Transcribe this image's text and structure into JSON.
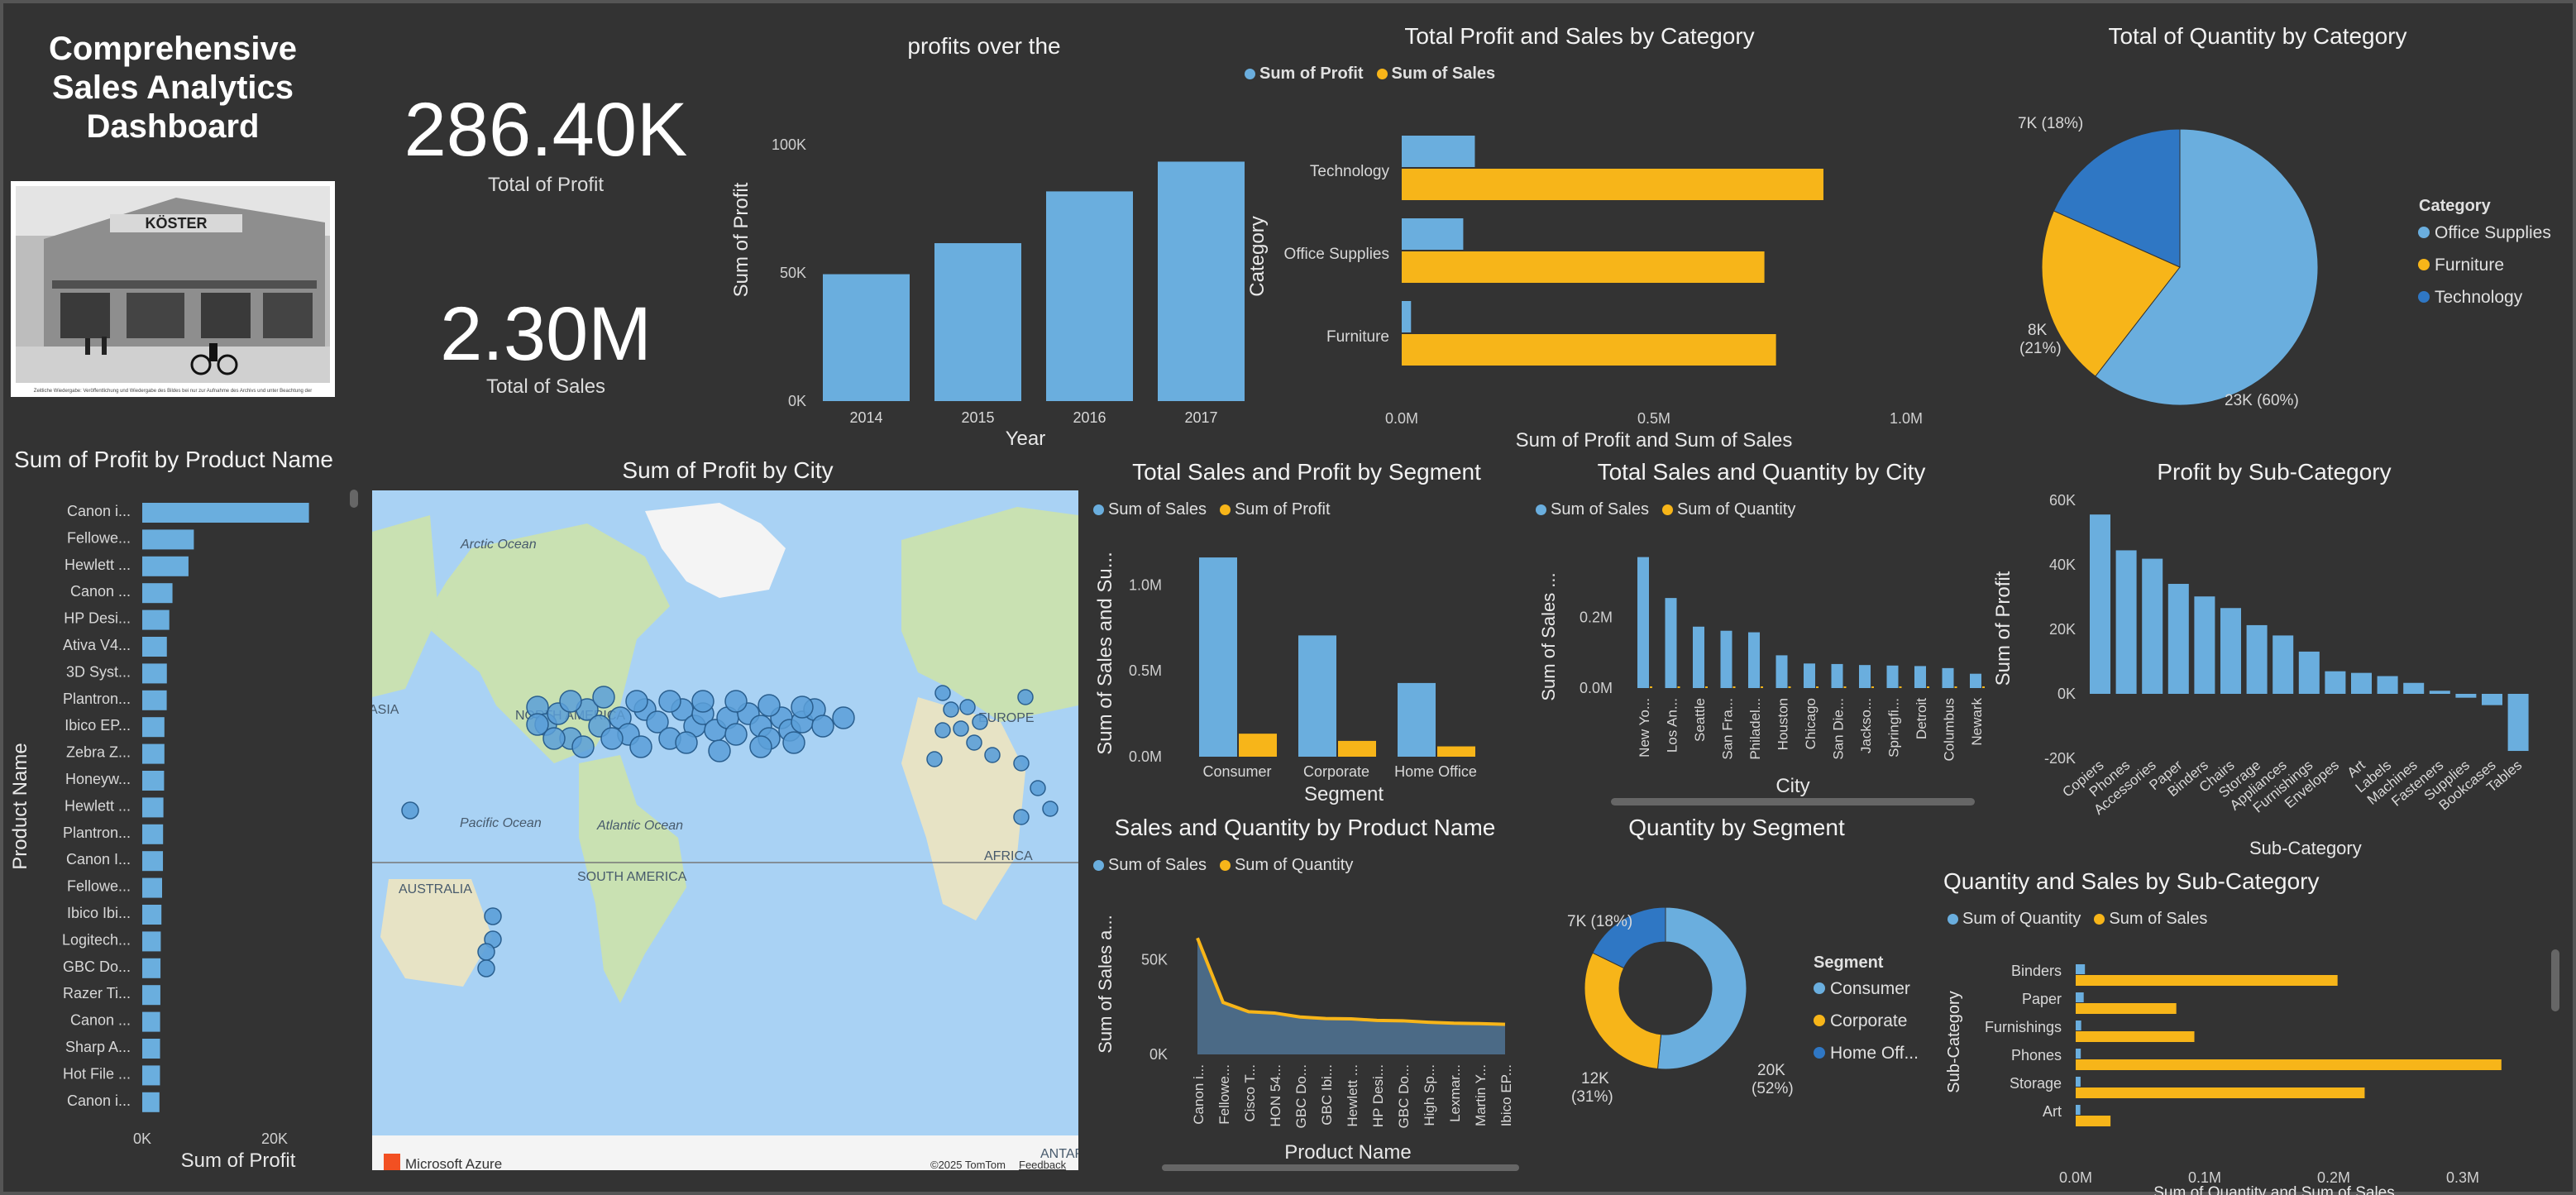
{
  "dashboard": {
    "title": "Comprehensive Sales Analytics Dashboard",
    "logo_lines": [
      "Comprehensive",
      "Sales Analytics",
      "Dashboard"
    ],
    "photo_caption": "Zeitliche Wiedergabe: Veröffentlichung und Wiedergabe des Bildes bei nur zur Aufnahme des Archivs und unter Beachtung der",
    "photo_sign": "KÖSTER"
  },
  "kpis": {
    "profit_value": "286.40K",
    "profit_label": "Total of Profit",
    "sales_value": "2.30M",
    "sales_label": "Total  of Sales"
  },
  "colors": {
    "blue": "#6aaede",
    "orange": "#f7b519",
    "darkblue": "#2f77c4"
  },
  "map": {
    "title": "Sum of Profit by City",
    "labels": [
      "Arctic Ocean",
      "NORTH AMERICA",
      "EUROPE",
      "ASIA",
      "Pacific Ocean",
      "Atlantic Ocean",
      "AFRICA",
      "AUSTRALIA",
      "SOUTH AMERICA",
      "ANTAR"
    ],
    "attribution": "Microsoft Azure",
    "copyright": "©2025 TomTom",
    "feedback": "Feedback"
  },
  "chart_data": [
    {
      "id": "profit_year",
      "type": "bar",
      "title": "profits over the",
      "xlabel": "Year",
      "ylabel": "Sum of Profit",
      "categories": [
        "2014",
        "2015",
        "2016",
        "2017"
      ],
      "values": [
        49500,
        61600,
        81800,
        93400
      ],
      "ylim": [
        0,
        100000
      ],
      "yticks": [
        "0K",
        "50K",
        "100K"
      ]
    },
    {
      "id": "profit_sales_category",
      "type": "bar",
      "orientation": "horizontal",
      "title": "Total Profit and Sales by Category",
      "xlabel": "Sum of Profit and Sum of Sales",
      "ylabel": "Category",
      "categories": [
        "Technology",
        "Office Supplies",
        "Furniture"
      ],
      "series": [
        {
          "name": "Sum of Profit",
          "values": [
            145000,
            122000,
            18500
          ]
        },
        {
          "name": "Sum of Sales",
          "values": [
            836000,
            719000,
            742000
          ]
        }
      ],
      "xlim": [
        0,
        1000000
      ],
      "xticks": [
        "0.0M",
        "0.5M",
        "1.0M"
      ]
    },
    {
      "id": "quantity_category",
      "type": "pie",
      "title": "Total of Quantity by Category",
      "legend_title": "Category",
      "categories": [
        "Office Supplies",
        "Furniture",
        "Technology"
      ],
      "values": [
        22906,
        8028,
        6939
      ],
      "data_labels": [
        "23K (60%)",
        "8K\n(21%)",
        "7K (18%)"
      ]
    },
    {
      "id": "profit_product",
      "type": "bar",
      "orientation": "horizontal",
      "title": "Sum of Profit by Product Name",
      "xlabel": "Sum of Profit",
      "ylabel": "Product Name",
      "categories": [
        "Canon i...",
        "Fellowe...",
        "Hewlett ...",
        "Canon ...",
        "HP Desi...",
        "Ativa V4...",
        "3D Syst...",
        "Plantron...",
        "Ibico EP...",
        "Zebra Z...",
        "Honeyw...",
        "Hewlett ...",
        "Plantron...",
        "Canon I...",
        "Fellowe...",
        "Ibico Ibi...",
        "Logitech...",
        "GBC Do...",
        "Razer Ti...",
        "Canon ...",
        "Sharp A...",
        "Hot File ...",
        "Canon i..."
      ],
      "values": [
        25200,
        7800,
        6990,
        4570,
        4090,
        3720,
        3720,
        3700,
        3350,
        3350,
        3300,
        3200,
        3150,
        3130,
        3000,
        2900,
        2800,
        2760,
        2740,
        2700,
        2690,
        2680,
        2600
      ],
      "xlim": [
        0,
        30000
      ],
      "xticks": [
        "0K",
        "20K"
      ]
    },
    {
      "id": "sales_profit_segment",
      "type": "bar",
      "title": "Total Sales and Profit by Segment",
      "xlabel": "Segment",
      "ylabel": "Sum of Sales and Su...",
      "categories": [
        "Consumer",
        "Corporate",
        "Home Office"
      ],
      "series": [
        {
          "name": "Sum of Sales",
          "values": [
            1160000,
            706000,
            429000
          ]
        },
        {
          "name": "Sum of Profit",
          "values": [
            134000,
            92000,
            60000
          ]
        }
      ],
      "ylim": [
        0,
        1300000
      ],
      "yticks": [
        "0.0M",
        "0.5M",
        "1.0M"
      ]
    },
    {
      "id": "sales_quantity_city",
      "type": "bar",
      "title": "Total Sales and Quantity by City",
      "xlabel": "City",
      "ylabel": "Sum of Sales ...",
      "categories": [
        "New Yo...",
        "Los An...",
        "Seattle",
        "San Fra...",
        "Philadel...",
        "Houston",
        "Chicago",
        "San Die...",
        "Jackso...",
        "Springfi...",
        "Detroit",
        "Columbus",
        "Newark"
      ],
      "series": [
        {
          "name": "Sum of Sales",
          "values": [
            256000,
            176000,
            120000,
            112000,
            109000,
            64000,
            48000,
            47000,
            45000,
            44000,
            43000,
            39000,
            28000
          ]
        },
        {
          "name": "Sum of Quantity",
          "values": [
            3400,
            2900,
            1600,
            1900,
            1900,
            1500,
            1100,
            600,
            400,
            400,
            300,
            500,
            200
          ]
        }
      ],
      "ylim": [
        0,
        300000
      ],
      "yticks": [
        "0.0M",
        "0.2M"
      ]
    },
    {
      "id": "profit_subcategory",
      "type": "bar",
      "title": "Profit by Sub-Category",
      "xlabel": "Sub-Category",
      "ylabel": "Sum of Profit",
      "categories": [
        "Copiers",
        "Phones",
        "Accessories",
        "Paper",
        "Binders",
        "Chairs",
        "Storage",
        "Appliances",
        "Furnishings",
        "Envelopes",
        "Art",
        "Labels",
        "Machines",
        "Fasteners",
        "Supplies",
        "Bookcases",
        "Tables"
      ],
      "values": [
        55600,
        44500,
        41900,
        34100,
        30200,
        26600,
        21300,
        18100,
        13100,
        7000,
        6500,
        5500,
        3400,
        950,
        -1200,
        -3500,
        -17700
      ],
      "ylim": [
        -20000,
        60000
      ],
      "yticks": [
        "-20K",
        "0K",
        "20K",
        "40K",
        "60K"
      ]
    },
    {
      "id": "sales_quantity_product",
      "type": "area",
      "title": "Sales and Quantity by Product Name",
      "xlabel": "Product Name",
      "ylabel": "Sum of Sales a...",
      "categories": [
        "Canon i...",
        "Fellowe...",
        "Cisco T...",
        "HON 54...",
        "GBC Do...",
        "GBC Ibi...",
        "Hewlett ...",
        "HP Desi...",
        "GBC Do...",
        "High Sp...",
        "Lexmar...",
        "Martin Y...",
        "Ibico EP..."
      ],
      "series": [
        {
          "name": "Sum of Sales",
          "values": [
            61600,
            27500,
            22600,
            21900,
            19800,
            19000,
            18800,
            18000,
            17800,
            17000,
            16500,
            16300,
            15900
          ]
        },
        {
          "name": "Sum of Quantity",
          "values": [
            160,
            140,
            120,
            130,
            110,
            100,
            90,
            95,
            85,
            80,
            75,
            70,
            60
          ]
        }
      ],
      "ylim": [
        0,
        70000
      ],
      "yticks": [
        "0K",
        "50K"
      ]
    },
    {
      "id": "quantity_segment",
      "type": "pie",
      "variant": "donut",
      "title": "Quantity by Segment",
      "legend_title": "Segment",
      "categories": [
        "Consumer",
        "Corporate",
        "Home Off..."
      ],
      "values": [
        19521,
        11608,
        6744
      ],
      "data_labels": [
        "20K\n(52%)",
        "12K\n(31%)",
        "7K (18%)"
      ]
    },
    {
      "id": "quantity_sales_subcategory",
      "type": "bar",
      "orientation": "horizontal",
      "title": "Quantity and Sales by Sub-Category",
      "xlabel": "Sum of Quantity and Sum of Sales",
      "ylabel": "Sub-Category",
      "categories": [
        "Binders",
        "Paper",
        "Furnishings",
        "Phones",
        "Storage",
        "Art"
      ],
      "series": [
        {
          "name": "Sum of Quantity",
          "values": [
            5974,
            5178,
            3563,
            3289,
            3158,
            3000
          ]
        },
        {
          "name": "Sum of Sales",
          "values": [
            203000,
            78000,
            92000,
            330000,
            224000,
            27000
          ]
        }
      ],
      "xlim": [
        0,
        350000
      ],
      "xticks": [
        "0.0M",
        "0.1M",
        "0.2M",
        "0.3M"
      ]
    }
  ]
}
